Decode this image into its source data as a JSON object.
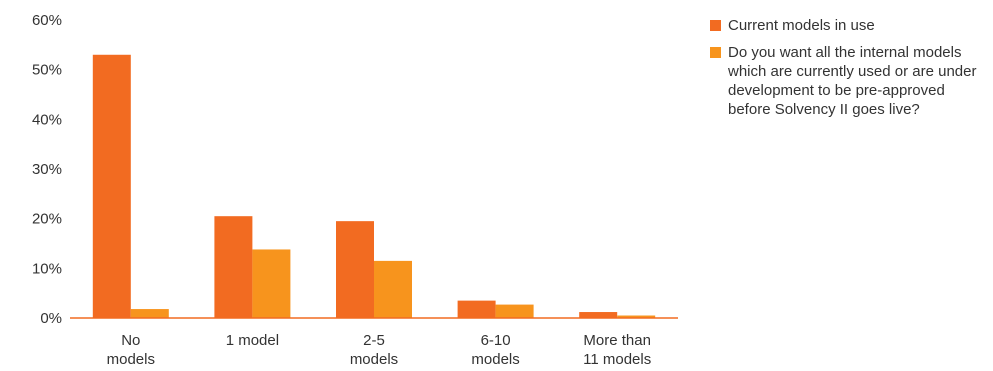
{
  "chart_data": {
    "type": "bar",
    "title": "",
    "xlabel": "",
    "ylabel": "",
    "ylim": [
      0,
      60
    ],
    "yticks": [
      0,
      10,
      20,
      30,
      40,
      50,
      60
    ],
    "ytick_labels": [
      "0%",
      "10%",
      "20%",
      "30%",
      "40%",
      "50%",
      "60%"
    ],
    "grid": false,
    "legend_position": "right",
    "categories": [
      [
        "No",
        "models"
      ],
      [
        "1 model"
      ],
      [
        "2-5",
        "models"
      ],
      [
        "6-10",
        "models"
      ],
      [
        "More than",
        "11 models"
      ]
    ],
    "series": [
      {
        "name": "Current models in use",
        "color": "#f26b21",
        "values": [
          53,
          20.5,
          19.5,
          3.5,
          1.2
        ]
      },
      {
        "name": "Do you want all the internal models which are currently used or are under development to be pre-approved before Solvency II goes live?",
        "color": "#f7941d",
        "values": [
          1.8,
          13.8,
          11.5,
          2.7,
          0.5
        ]
      }
    ]
  }
}
